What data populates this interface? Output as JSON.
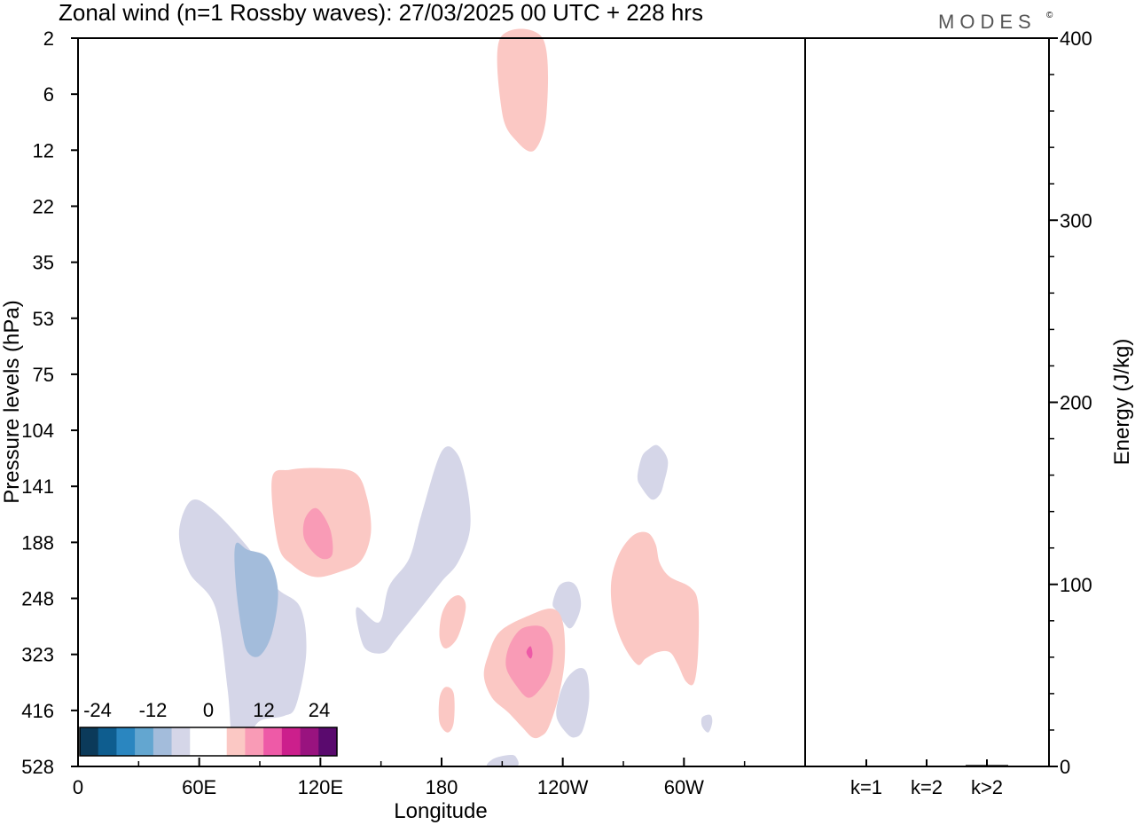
{
  "chart_data": {
    "type": "contour",
    "title": "Zonal wind (n=1 Rossby waves):  27/03/2025  00 UTC  + 228 hrs",
    "logo": "MODES",
    "logo_mark": "©",
    "xlabel": "Longitude",
    "ylabel": "Pressure levels (hPa)",
    "y2label": "Energy (J/kg)",
    "x_ticks": [
      {
        "lon": 0,
        "label": "0"
      },
      {
        "lon": 60,
        "label": "60E"
      },
      {
        "lon": 120,
        "label": "120E"
      },
      {
        "lon": 180,
        "label": "180"
      },
      {
        "lon": 240,
        "label": "120W"
      },
      {
        "lon": 300,
        "label": "60W"
      }
    ],
    "xlim": [
      0,
      360
    ],
    "pressure_levels": [
      "2",
      "6",
      "12",
      "22",
      "35",
      "53",
      "75",
      "104",
      "141",
      "188",
      "248",
      "323",
      "416",
      "528"
    ],
    "energy_ticks": [
      "0",
      "100",
      "200",
      "300",
      "400"
    ],
    "energy_lim": [
      0,
      400
    ],
    "energy_categories": [
      "k=1",
      "k=2",
      "k>2"
    ],
    "energy_values": [
      0.3,
      0.3,
      0.8
    ],
    "colorbar": {
      "labels": [
        "-24",
        "-12",
        "0",
        "12",
        "24"
      ],
      "colors": [
        "#0b3a5a",
        "#0e5d8f",
        "#2a86c0",
        "#63a6d0",
        "#a3bcdb",
        "#d5d6e8",
        "#ffffff",
        "#ffffff",
        "#fbc8c4",
        "#f99bb6",
        "#ee5aa7",
        "#cc1f8c",
        "#99137f",
        "#5a0a6e"
      ]
    },
    "contours": [
      {
        "level": -6,
        "color": "#d5d6e8",
        "points": [
          [
            55,
            220
          ],
          [
            50,
            180
          ],
          [
            56,
            153
          ],
          [
            67,
            161
          ],
          [
            84,
            193
          ],
          [
            98,
            236
          ],
          [
            110,
            260
          ],
          [
            113,
            320
          ],
          [
            108,
            407
          ],
          [
            102,
            427
          ],
          [
            90,
            437
          ],
          [
            84,
            472
          ],
          [
            79,
            481
          ],
          [
            76,
            465
          ],
          [
            74,
            380
          ],
          [
            68,
            260
          ]
        ]
      },
      {
        "level": -12,
        "color": "#a3bcdb",
        "points": [
          [
            78,
            190
          ],
          [
            84,
            196
          ],
          [
            94,
            205
          ],
          [
            99,
            240
          ],
          [
            96,
            295
          ],
          [
            90,
            325
          ],
          [
            84,
            320
          ],
          [
            81,
            290
          ],
          [
            78,
            230
          ]
        ]
      },
      {
        "level": -6,
        "color": "#d5d6e8",
        "points": [
          [
            149,
            280
          ],
          [
            154,
            235
          ],
          [
            164,
            205
          ],
          [
            170,
            165
          ],
          [
            180,
            118
          ],
          [
            188,
            120
          ],
          [
            193,
            145
          ],
          [
            194,
            178
          ],
          [
            188,
            210
          ],
          [
            180,
            230
          ],
          [
            170,
            260
          ],
          [
            158,
            300
          ],
          [
            152,
            320
          ],
          [
            144,
            319
          ],
          [
            140,
            302
          ],
          [
            138,
            260
          ]
        ]
      },
      {
        "level": -6,
        "color": "#d5d6e8",
        "points": [
          [
            277,
            135
          ],
          [
            279,
            122
          ],
          [
            282,
            117
          ],
          [
            287,
            114
          ],
          [
            292,
            124
          ],
          [
            290,
            139
          ],
          [
            288,
            148
          ],
          [
            284,
            152
          ],
          [
            279,
            142
          ]
        ]
      },
      {
        "level": -6,
        "color": "#d5d6e8",
        "points": [
          [
            235,
            255
          ],
          [
            238,
            235
          ],
          [
            243,
            230
          ],
          [
            247,
            236
          ],
          [
            249,
            255
          ],
          [
            247,
            276
          ],
          [
            243,
            288
          ],
          [
            237,
            265
          ]
        ]
      },
      {
        "level": -6,
        "color": "#d5d6e8",
        "points": [
          [
            238,
            395
          ],
          [
            242,
            363
          ],
          [
            248,
            346
          ],
          [
            252,
            355
          ],
          [
            253,
            400
          ],
          [
            250,
            455
          ],
          [
            246,
            470
          ],
          [
            242,
            462
          ],
          [
            237,
            430
          ]
        ]
      },
      {
        "level": -6,
        "color": "#d5d6e8",
        "points": [
          [
            309,
            430
          ],
          [
            313,
            425
          ],
          [
            314,
            440
          ],
          [
            312,
            460
          ],
          [
            309,
            448
          ]
        ]
      },
      {
        "level": -6,
        "color": "#d5d6e8",
        "points": [
          [
            203,
            528
          ],
          [
            206,
            512
          ],
          [
            214,
            505
          ],
          [
            217,
            510
          ],
          [
            217,
            528
          ]
        ]
      },
      {
        "level": 6,
        "color": "#fbc8c4",
        "points": [
          [
            96,
            136
          ],
          [
            105,
            130
          ],
          [
            121,
            129
          ],
          [
            137,
            132
          ],
          [
            143,
            150
          ],
          [
            145,
            180
          ],
          [
            140,
            208
          ],
          [
            129,
            220
          ],
          [
            117,
            225
          ],
          [
            106,
            212
          ],
          [
            99,
            190
          ]
        ]
      },
      {
        "level": 12,
        "color": "#f99bb6",
        "points": [
          [
            112,
            170
          ],
          [
            116,
            160
          ],
          [
            120,
            162
          ],
          [
            125,
            178
          ],
          [
            126,
            200
          ],
          [
            122,
            206
          ],
          [
            117,
            200
          ],
          [
            112,
            185
          ]
        ]
      },
      {
        "level": 6,
        "color": "#fbc8c4",
        "points": [
          [
            180,
            270
          ],
          [
            184,
            250
          ],
          [
            189,
            245
          ],
          [
            192,
            260
          ],
          [
            188,
            300
          ],
          [
            182,
            315
          ],
          [
            179,
            300
          ]
        ]
      },
      {
        "level": 6,
        "color": "#fbc8c4",
        "points": [
          [
            179,
            395
          ],
          [
            182,
            377
          ],
          [
            186,
            388
          ],
          [
            186,
            440
          ],
          [
            183,
            460
          ],
          [
            179,
            440
          ]
        ]
      },
      {
        "level": 6,
        "color": "#fbc8c4",
        "points": [
          [
            203,
            325
          ],
          [
            209,
            292
          ],
          [
            224,
            270
          ],
          [
            235,
            262
          ],
          [
            240,
            280
          ],
          [
            241,
            330
          ],
          [
            238,
            392
          ],
          [
            233,
            450
          ],
          [
            229,
            468
          ],
          [
            225,
            470
          ],
          [
            220,
            450
          ],
          [
            213,
            420
          ],
          [
            205,
            395
          ],
          [
            201,
            360
          ]
        ]
      },
      {
        "level": 12,
        "color": "#f99bb6",
        "points": [
          [
            213,
            315
          ],
          [
            218,
            292
          ],
          [
            224,
            285
          ],
          [
            231,
            288
          ],
          [
            235,
            310
          ],
          [
            234,
            350
          ],
          [
            229,
            380
          ],
          [
            223,
            395
          ],
          [
            217,
            375
          ],
          [
            212,
            345
          ]
        ]
      },
      {
        "level": 18,
        "color": "#ee5aa7",
        "points": [
          [
            222,
            320
          ],
          [
            224,
            312
          ],
          [
            225,
            322
          ],
          [
            224,
            330
          ]
        ]
      },
      {
        "level": 6,
        "color": "#fbc8c4",
        "points": [
          [
            264,
            230
          ],
          [
            268,
            200
          ],
          [
            275,
            182
          ],
          [
            282,
            180
          ],
          [
            286,
            190
          ],
          [
            288,
            210
          ],
          [
            293,
            225
          ],
          [
            303,
            236
          ],
          [
            307,
            255
          ],
          [
            307,
            320
          ],
          [
            305,
            370
          ],
          [
            301,
            368
          ],
          [
            297,
            340
          ],
          [
            293,
            320
          ],
          [
            287,
            320
          ],
          [
            281,
            330
          ],
          [
            277,
            340
          ],
          [
            270,
            310
          ],
          [
            265,
            270
          ]
        ]
      },
      {
        "level": 6,
        "color": "#fbc8c4",
        "points": [
          [
            209,
            2
          ],
          [
            230,
            2
          ],
          [
            232,
            8
          ],
          [
            226,
            12
          ],
          [
            217,
            11
          ],
          [
            210,
            8
          ]
        ]
      }
    ]
  }
}
